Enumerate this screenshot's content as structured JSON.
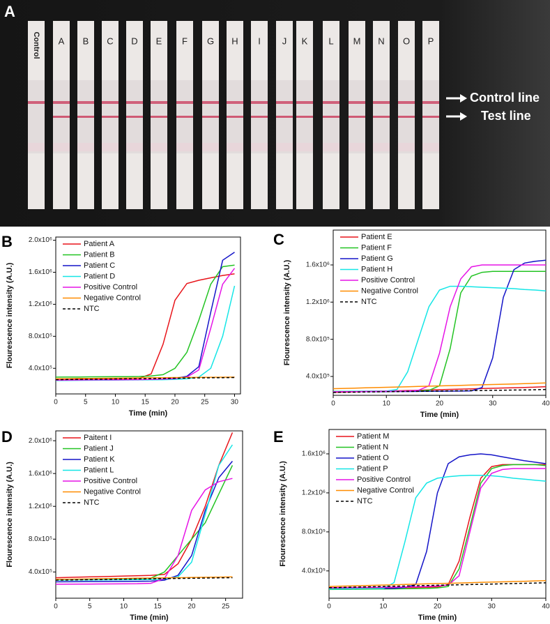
{
  "photo": {
    "panel": "A",
    "strip_labels": [
      "Control",
      "A",
      "B",
      "C",
      "D",
      "E",
      "F",
      "G",
      "H",
      "I",
      "J",
      "K",
      "L",
      "M",
      "N",
      "O",
      "P"
    ],
    "annotations": [
      "Control line",
      "Test line"
    ]
  },
  "chart_data": [
    {
      "type": "line",
      "panel": "B",
      "xlabel": "Time (min)",
      "ylabel": "Flourescence intensity (A.U.)",
      "xlim": [
        0,
        31
      ],
      "xticks": [
        0,
        5,
        10,
        15,
        20,
        25,
        30
      ],
      "ylim": [
        80000,
        2040000
      ],
      "yticks": [
        {
          "value": 400000,
          "label": "4.0x10⁵"
        },
        {
          "value": 800000,
          "label": "8.0x10⁵"
        },
        {
          "value": 1200000,
          "label": "1.2x10⁶"
        },
        {
          "value": 1600000,
          "label": "1.6x10⁶"
        },
        {
          "value": 2000000,
          "label": "2.0x10⁶"
        }
      ],
      "x": [
        0,
        2,
        4,
        6,
        8,
        10,
        12,
        14,
        16,
        18,
        20,
        22,
        24,
        26,
        28,
        30
      ],
      "series": [
        {
          "name": "Patient A",
          "color": "#e8141a",
          "values": [
            260000,
            262000,
            264000,
            266000,
            268000,
            270000,
            272000,
            275000,
            330000,
            700000,
            1250000,
            1460000,
            1500000,
            1530000,
            1560000,
            1580000
          ]
        },
        {
          "name": "Patient B",
          "color": "#22c322",
          "values": [
            290000,
            291000,
            292000,
            293000,
            294000,
            295000,
            296000,
            298000,
            305000,
            320000,
            400000,
            600000,
            1000000,
            1450000,
            1670000,
            1690000
          ]
        },
        {
          "name": "Patient C",
          "color": "#1414c8",
          "values": [
            250000,
            251000,
            252000,
            253000,
            254000,
            255000,
            256000,
            257000,
            260000,
            265000,
            275000,
            300000,
            420000,
            1100000,
            1750000,
            1850000
          ]
        },
        {
          "name": "Patient D",
          "color": "#14e6e6",
          "values": [
            248000,
            249000,
            250000,
            251000,
            252000,
            253000,
            254000,
            255000,
            256000,
            258000,
            262000,
            270000,
            290000,
            400000,
            800000,
            1430000
          ]
        },
        {
          "name": "Positive Control",
          "color": "#e614e6",
          "values": [
            252000,
            253000,
            254000,
            255000,
            256000,
            257000,
            258000,
            259000,
            262000,
            266000,
            272000,
            290000,
            380000,
            900000,
            1450000,
            1650000
          ]
        },
        {
          "name": "Negative Control",
          "color": "#ff8c00",
          "values": [
            270000,
            271000,
            273000,
            274000,
            276000,
            277000,
            279000,
            280000,
            282000,
            283000,
            285000,
            286000,
            287000,
            288000,
            289000,
            290000
          ]
        },
        {
          "name": "NTC",
          "color": "#000000",
          "dashed": true,
          "values": [
            258000,
            260000,
            262000,
            264000,
            265000,
            267000,
            269000,
            270000,
            272000,
            274000,
            276000,
            278000,
            280000,
            282000,
            283000,
            285000
          ]
        }
      ]
    },
    {
      "type": "line",
      "panel": "C",
      "xlabel": "Time (min)",
      "ylabel": "Flourescence intensity (A.U.)",
      "xlim": [
        0,
        40
      ],
      "xticks": [
        0,
        10,
        20,
        30,
        40
      ],
      "ylim": [
        197000,
        1975000
      ],
      "yticks": [
        {
          "value": 400000,
          "label": "4.0x10⁵"
        },
        {
          "value": 800000,
          "label": "8.0x10⁵"
        },
        {
          "value": 1200000,
          "label": "1.2x10⁶"
        },
        {
          "value": 1600000,
          "label": "1.6x10⁶"
        }
      ],
      "x": [
        0,
        2,
        4,
        6,
        8,
        10,
        12,
        14,
        16,
        18,
        20,
        22,
        24,
        26,
        28,
        30,
        32,
        34,
        36,
        38,
        40
      ],
      "series": [
        {
          "name": "Patient E",
          "color": "#e8141a",
          "values": [
            228000,
            231000,
            234000,
            237000,
            240000,
            243000,
            246000,
            249000,
            252000,
            255000,
            258000,
            261000,
            264000,
            267000,
            270000,
            273000,
            276000,
            279000,
            282000,
            285000,
            290000
          ]
        },
        {
          "name": "Patient F",
          "color": "#22c322",
          "values": [
            240000,
            240000,
            241000,
            241000,
            242000,
            242000,
            243000,
            243000,
            244000,
            250000,
            300000,
            700000,
            1300000,
            1480000,
            1520000,
            1530000,
            1530000,
            1530000,
            1530000,
            1530000,
            1530000
          ]
        },
        {
          "name": "Patient G",
          "color": "#1414c8",
          "values": [
            235000,
            235000,
            236000,
            236000,
            237000,
            237000,
            238000,
            238000,
            239000,
            240000,
            241000,
            242000,
            243000,
            245000,
            280000,
            600000,
            1250000,
            1550000,
            1620000,
            1640000,
            1650000
          ]
        },
        {
          "name": "Patient H",
          "color": "#14e6e6",
          "values": [
            238000,
            239000,
            240000,
            241000,
            242000,
            243000,
            260000,
            450000,
            800000,
            1150000,
            1330000,
            1370000,
            1370000,
            1365000,
            1360000,
            1355000,
            1350000,
            1345000,
            1335000,
            1330000,
            1320000
          ]
        },
        {
          "name": "Positive Control",
          "color": "#e614e6",
          "values": [
            235000,
            236000,
            237000,
            238000,
            239000,
            240000,
            242000,
            244000,
            250000,
            300000,
            650000,
            1150000,
            1450000,
            1580000,
            1600000,
            1600000,
            1600000,
            1600000,
            1600000,
            1600000,
            1600000
          ]
        },
        {
          "name": "Negative Control",
          "color": "#ff8c00",
          "values": [
            268000,
            271000,
            274000,
            277000,
            280000,
            283000,
            286000,
            289000,
            292000,
            295000,
            298000,
            301000,
            304000,
            307000,
            310000,
            313000,
            316000,
            319000,
            322000,
            326000,
            330000
          ]
        },
        {
          "name": "NTC",
          "color": "#000000",
          "dashed": true,
          "values": [
            228000,
            230000,
            231000,
            233000,
            234000,
            236000,
            237000,
            239000,
            240000,
            242000,
            243000,
            245000,
            246000,
            248000,
            249000,
            251000,
            252000,
            254000,
            255000,
            257000,
            260000
          ]
        }
      ]
    },
    {
      "type": "line",
      "panel": "D",
      "xlabel": "Time (min)",
      "ylabel": "Flourescence intensity (A.U.)",
      "xlim": [
        0,
        27.5
      ],
      "xticks": [
        0,
        5,
        10,
        15,
        20,
        25
      ],
      "ylim": [
        80000,
        2120000
      ],
      "yticks": [
        {
          "value": 400000,
          "label": "4.0x10⁵"
        },
        {
          "value": 800000,
          "label": "8.0x10⁵"
        },
        {
          "value": 1200000,
          "label": "1.2x10⁶"
        },
        {
          "value": 1600000,
          "label": "1.6x10⁶"
        },
        {
          "value": 2000000,
          "label": "2.0x10⁶"
        }
      ],
      "x": [
        0,
        2,
        4,
        6,
        8,
        10,
        12,
        14,
        16,
        18,
        20,
        22,
        24,
        26
      ],
      "series": [
        {
          "name": "Paitent I",
          "color": "#e8141a",
          "values": [
            330000,
            334000,
            338000,
            342000,
            346000,
            350000,
            354000,
            358000,
            370000,
            500000,
            800000,
            1200000,
            1700000,
            2100000
          ]
        },
        {
          "name": "Patient J",
          "color": "#22c322",
          "values": [
            300000,
            302000,
            304000,
            306000,
            308000,
            310000,
            315000,
            325000,
            400000,
            600000,
            800000,
            1000000,
            1350000,
            1700000
          ]
        },
        {
          "name": "Patient K",
          "color": "#1414c8",
          "values": [
            280000,
            281000,
            282000,
            283000,
            284000,
            285000,
            286000,
            288000,
            300000,
            360000,
            600000,
            1150000,
            1550000,
            1750000
          ]
        },
        {
          "name": "Patient L",
          "color": "#14e6e6",
          "values": [
            300000,
            301000,
            302000,
            303000,
            304000,
            305000,
            306000,
            308000,
            315000,
            340000,
            520000,
            1100000,
            1700000,
            1950000
          ]
        },
        {
          "name": "Positive Control",
          "color": "#e614e6",
          "values": [
            250000,
            251000,
            252000,
            253000,
            254000,
            255000,
            256000,
            262000,
            320000,
            600000,
            1150000,
            1400000,
            1500000,
            1540000
          ]
        },
        {
          "name": "Negative Control",
          "color": "#ff8c00",
          "values": [
            310000,
            312000,
            314000,
            317000,
            319000,
            321000,
            324000,
            326000,
            328000,
            330000,
            333000,
            335000,
            337000,
            340000
          ]
        },
        {
          "name": "NTC",
          "color": "#000000",
          "dashed": true,
          "values": [
            300000,
            302000,
            305000,
            307000,
            309000,
            312000,
            314000,
            316000,
            319000,
            321000,
            323000,
            326000,
            328000,
            330000
          ]
        }
      ]
    },
    {
      "type": "line",
      "panel": "E",
      "xlabel": "Time (min)",
      "ylabel": "Flourescence intensity (A.U.)",
      "xlim": [
        0,
        40
      ],
      "xticks": [
        0,
        10,
        20,
        30,
        40
      ],
      "ylim": [
        120000,
        1850000
      ],
      "yticks": [
        {
          "value": 400000,
          "label": "4.0x10⁵"
        },
        {
          "value": 800000,
          "label": "8.0x10⁵"
        },
        {
          "value": 1200000,
          "label": "1.2x10⁶"
        },
        {
          "value": 1600000,
          "label": "1.6x10⁶"
        }
      ],
      "x": [
        0,
        2,
        4,
        6,
        8,
        10,
        12,
        14,
        16,
        18,
        20,
        22,
        24,
        26,
        28,
        30,
        32,
        34,
        36,
        38,
        40
      ],
      "series": [
        {
          "name": "Patient M",
          "color": "#e8141a",
          "values": [
            222000,
            223000,
            224000,
            225000,
            226000,
            227000,
            228000,
            229000,
            230000,
            232000,
            235000,
            260000,
            500000,
            950000,
            1350000,
            1470000,
            1490000,
            1490000,
            1490000,
            1490000,
            1490000
          ]
        },
        {
          "name": "Patient N",
          "color": "#22c322",
          "values": [
            210000,
            211000,
            212000,
            213000,
            214000,
            215000,
            216000,
            217000,
            218000,
            220000,
            225000,
            240000,
            420000,
            850000,
            1300000,
            1450000,
            1480000,
            1490000,
            1490000,
            1490000,
            1480000
          ]
        },
        {
          "name": "Patient O",
          "color": "#1414c8",
          "values": [
            215000,
            216000,
            217000,
            218000,
            219000,
            220000,
            221000,
            230000,
            260000,
            600000,
            1200000,
            1500000,
            1570000,
            1590000,
            1600000,
            1590000,
            1570000,
            1550000,
            1530000,
            1515000,
            1500000
          ]
        },
        {
          "name": "Patient P",
          "color": "#14e6e6",
          "values": [
            215000,
            216000,
            217000,
            218000,
            219000,
            220000,
            280000,
            700000,
            1150000,
            1300000,
            1350000,
            1365000,
            1375000,
            1380000,
            1380000,
            1375000,
            1365000,
            1350000,
            1340000,
            1330000,
            1320000
          ]
        },
        {
          "name": "Positive Control",
          "color": "#e614e6",
          "values": [
            228000,
            229000,
            230000,
            231000,
            232000,
            233000,
            234000,
            235000,
            237000,
            240000,
            245000,
            255000,
            350000,
            800000,
            1250000,
            1400000,
            1440000,
            1450000,
            1450000,
            1450000,
            1450000
          ]
        },
        {
          "name": "Negative Control",
          "color": "#ff8c00",
          "values": [
            240000,
            243000,
            246000,
            249000,
            252000,
            255000,
            258000,
            261000,
            264000,
            267000,
            270000,
            273000,
            276000,
            279000,
            282000,
            285000,
            288000,
            291000,
            294000,
            297000,
            300000
          ]
        },
        {
          "name": "NTC",
          "color": "#000000",
          "dashed": true,
          "values": [
            228000,
            230000,
            233000,
            235000,
            238000,
            240000,
            243000,
            245000,
            248000,
            250000,
            253000,
            255000,
            258000,
            260000,
            263000,
            265000,
            268000,
            270000,
            273000,
            275000,
            278000
          ]
        }
      ]
    }
  ]
}
